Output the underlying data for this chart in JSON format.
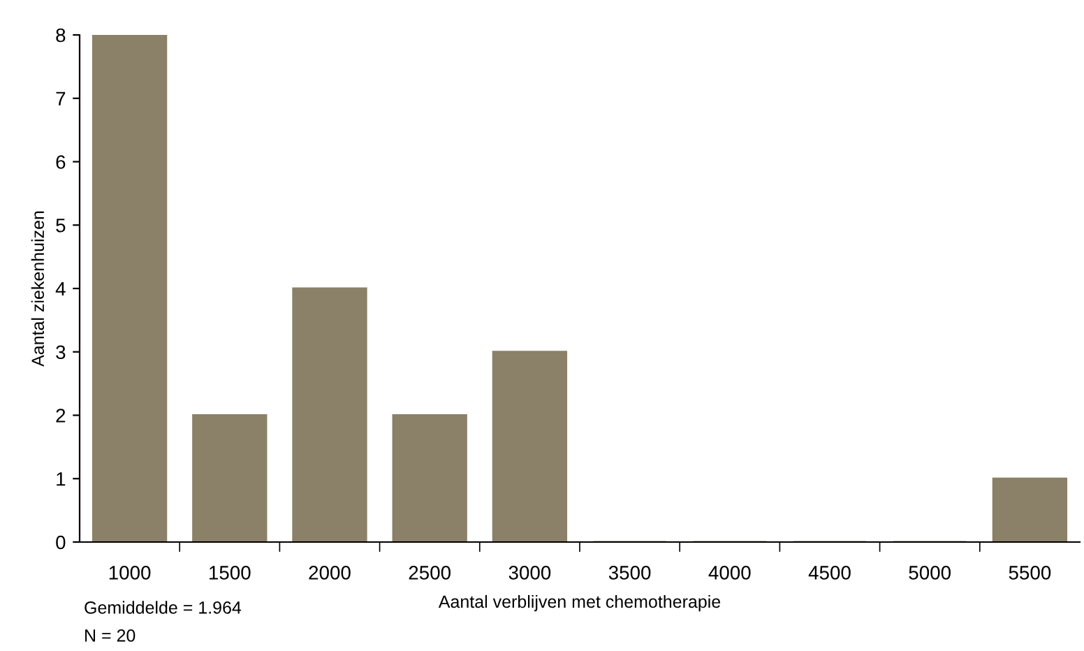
{
  "chart_data": {
    "type": "bar",
    "xlabel": "Aantal verblijven met chemotherapie",
    "ylabel": "Aantal ziekenhuizen",
    "categories": [
      "1000",
      "1500",
      "2000",
      "2500",
      "3000",
      "3500",
      "4000",
      "4500",
      "5000",
      "5500"
    ],
    "values": [
      8,
      2,
      4,
      2,
      3,
      0,
      0,
      0,
      0,
      1
    ],
    "color": "#8b8068",
    "ylim": [
      0,
      8
    ],
    "yticks": [
      0,
      1,
      2,
      3,
      4,
      5,
      6,
      7,
      8
    ],
    "grid": false,
    "legend": false,
    "annotations": [
      "Gemiddelde = 1.964",
      "N = 20"
    ]
  }
}
